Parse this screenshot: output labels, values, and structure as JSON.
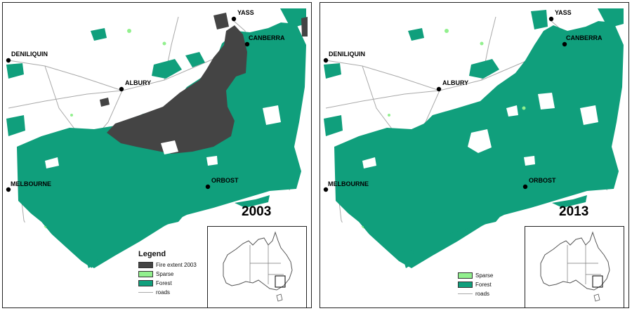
{
  "colors": {
    "forest": "#109f7c",
    "sparse": "#92f08e",
    "fire": "#444444",
    "roads": "#a9a9a9",
    "frame": "#222222"
  },
  "cities": {
    "yass": "YASS",
    "canberra": "CANBERRA",
    "deniliquin": "DENILIQUIN",
    "albury": "ALBURY",
    "orbost": "ORBOST",
    "melbourne": "MELBOURNE"
  },
  "panels": [
    {
      "year": "2003",
      "legend": {
        "title": "Legend",
        "fire": "Fire extent 2003",
        "sparse": "Sparse",
        "forest": "Forest",
        "roads": "roads"
      }
    },
    {
      "year": "2013",
      "legend": {
        "sparse": "Sparse",
        "forest": "Forest",
        "roads": "roads"
      }
    }
  ]
}
